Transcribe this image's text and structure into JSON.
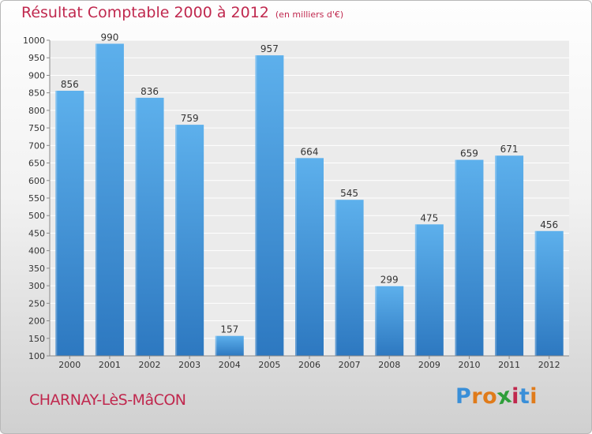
{
  "header": {
    "title": "Résultat Comptable 2000 à 2012",
    "unit": "(en milliers d'€)"
  },
  "footer": {
    "commune": "CHARNAY-LèS-MâCON",
    "logo_letters": [
      "P",
      "r",
      "o",
      "x",
      "i",
      "t",
      "i"
    ],
    "logo_colors": [
      "#3a8fd8",
      "#e07b1a",
      "#e07b1a",
      "#2e9e3a",
      "#c0284e",
      "#3a8fd8",
      "#e07b1a"
    ]
  },
  "chart_data": {
    "type": "bar",
    "categories": [
      "2000",
      "2001",
      "2002",
      "2003",
      "2004",
      "2005",
      "2006",
      "2007",
      "2008",
      "2009",
      "2010",
      "2011",
      "2012"
    ],
    "values": [
      856,
      990,
      836,
      759,
      157,
      957,
      664,
      545,
      299,
      475,
      659,
      671,
      456
    ],
    "data_labels": [
      "856",
      "990",
      "836",
      "759",
      "157",
      "957",
      "664",
      "545",
      "299",
      "475",
      "659",
      "671",
      "456"
    ],
    "title": "Résultat Comptable 2000 à 2012",
    "xlabel": "",
    "ylabel": "",
    "ylim": [
      100,
      1000
    ],
    "yticks": [
      100,
      150,
      200,
      250,
      300,
      350,
      400,
      450,
      500,
      550,
      600,
      650,
      700,
      750,
      800,
      850,
      900,
      950,
      1000
    ],
    "grid": true,
    "bar_color": "#4a9fe0"
  }
}
